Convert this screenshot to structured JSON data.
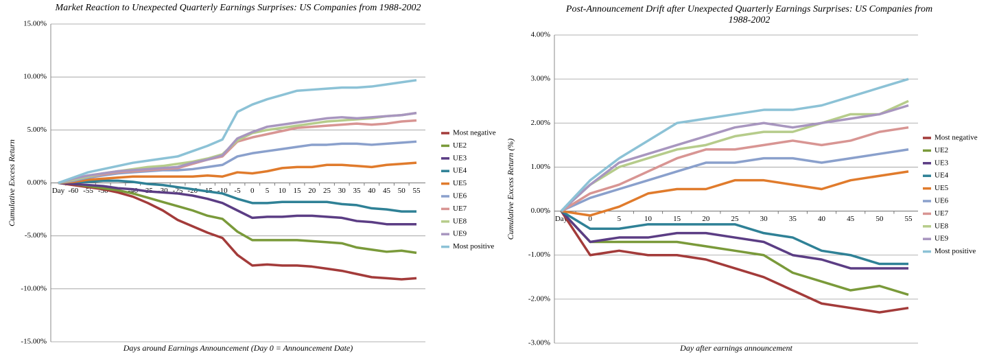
{
  "chart_data": [
    {
      "type": "line",
      "title": "Market Reaction to Unexpected Quarterly Earnings Surprises: US Companies from 1988-2002",
      "x_label": "Days around Earnings Announcement (Day 0 = Announcement Date)",
      "y_label": "Cumulative Excess Return",
      "categories": [
        "Day",
        "-60",
        "-55",
        "-50",
        "-45",
        "-40",
        "-35",
        "-30",
        "-25",
        "-20",
        "-15",
        "-10",
        "-5",
        "0",
        "5",
        "10",
        "15",
        "20",
        "25",
        "30",
        "35",
        "40",
        "45",
        "50",
        "55"
      ],
      "ylim": [
        -15,
        15
      ],
      "yticks": [
        {
          "value": -15,
          "label": "-15.00%"
        },
        {
          "value": -10,
          "label": "-10.00%"
        },
        {
          "value": -5,
          "label": "-5.00%"
        },
        {
          "value": 0,
          "label": "0.00%"
        },
        {
          "value": 5,
          "label": "5.00%"
        },
        {
          "value": 10,
          "label": "10.00%"
        },
        {
          "value": 15,
          "label": "15.00%"
        }
      ],
      "grid": true,
      "legend": "right",
      "series": [
        {
          "name": "Most negative",
          "color": "#a33b3a",
          "values": [
            0,
            -0.2,
            -0.4,
            -0.6,
            -0.9,
            -1.3,
            -1.9,
            -2.6,
            -3.5,
            -4.1,
            -4.7,
            -5.2,
            -6.8,
            -7.8,
            -7.7,
            -7.8,
            -7.8,
            -7.9,
            -8.1,
            -8.3,
            -8.6,
            -8.9,
            -9.0,
            -9.1,
            -9.0
          ]
        },
        {
          "name": "UE2",
          "color": "#7a9a3a",
          "values": [
            0,
            -0.1,
            -0.3,
            -0.5,
            -0.7,
            -1.0,
            -1.4,
            -1.8,
            -2.2,
            -2.6,
            -3.1,
            -3.4,
            -4.6,
            -5.4,
            -5.4,
            -5.4,
            -5.4,
            -5.5,
            -5.6,
            -5.7,
            -6.1,
            -6.3,
            -6.5,
            -6.4,
            -6.6
          ]
        },
        {
          "name": "UE3",
          "color": "#5b3d84",
          "values": [
            0,
            -0.1,
            -0.2,
            -0.3,
            -0.5,
            -0.6,
            -0.8,
            -0.9,
            -1.0,
            -1.2,
            -1.5,
            -1.9,
            -2.6,
            -3.3,
            -3.2,
            -3.2,
            -3.1,
            -3.1,
            -3.2,
            -3.3,
            -3.6,
            -3.7,
            -3.9,
            -3.9,
            -3.9
          ]
        },
        {
          "name": "UE4",
          "color": "#2f8196",
          "values": [
            0,
            0.1,
            0.1,
            0.2,
            0.2,
            0.1,
            -0.1,
            -0.2,
            -0.4,
            -0.6,
            -0.8,
            -1.0,
            -1.5,
            -1.9,
            -1.9,
            -1.8,
            -1.8,
            -1.8,
            -1.8,
            -2.0,
            -2.1,
            -2.4,
            -2.5,
            -2.7,
            -2.7
          ]
        },
        {
          "name": "UE5",
          "color": "#e07b2c",
          "values": [
            0,
            0.1,
            0.3,
            0.4,
            0.5,
            0.6,
            0.6,
            0.6,
            0.6,
            0.6,
            0.7,
            0.6,
            1.0,
            0.9,
            1.1,
            1.4,
            1.5,
            1.5,
            1.7,
            1.7,
            1.6,
            1.5,
            1.7,
            1.8,
            1.9
          ]
        },
        {
          "name": "UE6",
          "color": "#8aa0cc",
          "values": [
            0,
            0.2,
            0.5,
            0.7,
            0.9,
            1.0,
            1.1,
            1.2,
            1.2,
            1.3,
            1.5,
            1.7,
            2.5,
            2.8,
            3.0,
            3.2,
            3.4,
            3.6,
            3.6,
            3.7,
            3.7,
            3.6,
            3.7,
            3.8,
            3.9
          ]
        },
        {
          "name": "UE7",
          "color": "#d89593",
          "values": [
            0,
            0.3,
            0.6,
            0.8,
            1.0,
            1.1,
            1.2,
            1.3,
            1.4,
            1.8,
            2.2,
            2.5,
            3.9,
            4.3,
            4.6,
            4.9,
            5.2,
            5.3,
            5.4,
            5.5,
            5.6,
            5.5,
            5.6,
            5.8,
            5.9
          ]
        },
        {
          "name": "UE8",
          "color": "#b6cc8b",
          "values": [
            0,
            0.3,
            0.6,
            0.9,
            1.1,
            1.3,
            1.5,
            1.6,
            1.8,
            2.0,
            2.3,
            2.7,
            4.0,
            4.7,
            5.0,
            5.2,
            5.4,
            5.6,
            5.8,
            5.9,
            6.0,
            6.1,
            6.3,
            6.4,
            6.6
          ]
        },
        {
          "name": "UE9",
          "color": "#a896bf",
          "values": [
            0,
            0.4,
            0.7,
            0.9,
            1.1,
            1.2,
            1.3,
            1.4,
            1.5,
            1.9,
            2.2,
            2.6,
            4.2,
            4.8,
            5.3,
            5.5,
            5.7,
            5.9,
            6.1,
            6.2,
            6.1,
            6.2,
            6.3,
            6.4,
            6.6
          ]
        },
        {
          "name": "Most positive",
          "color": "#8cc2d6",
          "values": [
            0,
            0.5,
            1.0,
            1.3,
            1.6,
            1.9,
            2.1,
            2.3,
            2.5,
            3.0,
            3.5,
            4.1,
            6.7,
            7.4,
            7.9,
            8.3,
            8.7,
            8.8,
            8.9,
            9.0,
            9.0,
            9.1,
            9.3,
            9.5,
            9.7
          ]
        }
      ]
    },
    {
      "type": "line",
      "title": "Post-Announcement Drift after Unexpected Quarterly Earnings Surprises: US Companies from 1988-2002",
      "x_label": "Day after earnings announcement",
      "y_label": "Cumulative Excess Return (%)",
      "categories": [
        "Day",
        "0",
        "5",
        "10",
        "15",
        "20",
        "25",
        "30",
        "35",
        "40",
        "45",
        "50",
        "55"
      ],
      "ylim": [
        -3,
        4
      ],
      "yticks": [
        {
          "value": -3,
          "label": "-3.00%"
        },
        {
          "value": -2,
          "label": "-2.00%"
        },
        {
          "value": -1,
          "label": "-1.00%"
        },
        {
          "value": 0,
          "label": "0.00%"
        },
        {
          "value": 1,
          "label": "1.00%"
        },
        {
          "value": 2,
          "label": "2.00%"
        },
        {
          "value": 3,
          "label": "3.00%"
        },
        {
          "value": 4,
          "label": "4.00%"
        }
      ],
      "grid": true,
      "legend": "right",
      "series": [
        {
          "name": "Most negative",
          "color": "#a33b3a",
          "values": [
            0,
            -1.0,
            -0.9,
            -1.0,
            -1.0,
            -1.1,
            -1.3,
            -1.5,
            -1.8,
            -2.1,
            -2.2,
            -2.3,
            -2.2
          ]
        },
        {
          "name": "UE2",
          "color": "#7a9a3a",
          "values": [
            0,
            -0.7,
            -0.7,
            -0.7,
            -0.7,
            -0.8,
            -0.9,
            -1.0,
            -1.4,
            -1.6,
            -1.8,
            -1.7,
            -1.9
          ]
        },
        {
          "name": "UE3",
          "color": "#5b3d84",
          "values": [
            0,
            -0.7,
            -0.6,
            -0.6,
            -0.5,
            -0.5,
            -0.6,
            -0.7,
            -1.0,
            -1.1,
            -1.3,
            -1.3,
            -1.3
          ]
        },
        {
          "name": "UE4",
          "color": "#2f8196",
          "values": [
            0,
            -0.4,
            -0.4,
            -0.3,
            -0.3,
            -0.3,
            -0.3,
            -0.5,
            -0.6,
            -0.9,
            -1.0,
            -1.2,
            -1.2
          ]
        },
        {
          "name": "UE5",
          "color": "#e07b2c",
          "values": [
            0,
            -0.1,
            0.1,
            0.4,
            0.5,
            0.5,
            0.7,
            0.7,
            0.6,
            0.5,
            0.7,
            0.8,
            0.9
          ]
        },
        {
          "name": "UE6",
          "color": "#8aa0cc",
          "values": [
            0,
            0.3,
            0.5,
            0.7,
            0.9,
            1.1,
            1.1,
            1.2,
            1.2,
            1.1,
            1.2,
            1.3,
            1.4
          ]
        },
        {
          "name": "UE7",
          "color": "#d89593",
          "values": [
            0,
            0.4,
            0.6,
            0.9,
            1.2,
            1.4,
            1.4,
            1.5,
            1.6,
            1.5,
            1.6,
            1.8,
            1.9
          ]
        },
        {
          "name": "UE8",
          "color": "#b6cc8b",
          "values": [
            0,
            0.6,
            1.0,
            1.2,
            1.4,
            1.5,
            1.7,
            1.8,
            1.8,
            2.0,
            2.2,
            2.2,
            2.5
          ]
        },
        {
          "name": "UE9",
          "color": "#a896bf",
          "values": [
            0,
            0.6,
            1.1,
            1.3,
            1.5,
            1.7,
            1.9,
            2.0,
            1.9,
            2.0,
            2.1,
            2.2,
            2.4
          ]
        },
        {
          "name": "Most positive",
          "color": "#8cc2d6",
          "values": [
            0,
            0.7,
            1.2,
            1.6,
            2.0,
            2.1,
            2.2,
            2.3,
            2.3,
            2.4,
            2.6,
            2.8,
            3.0
          ]
        }
      ]
    }
  ]
}
